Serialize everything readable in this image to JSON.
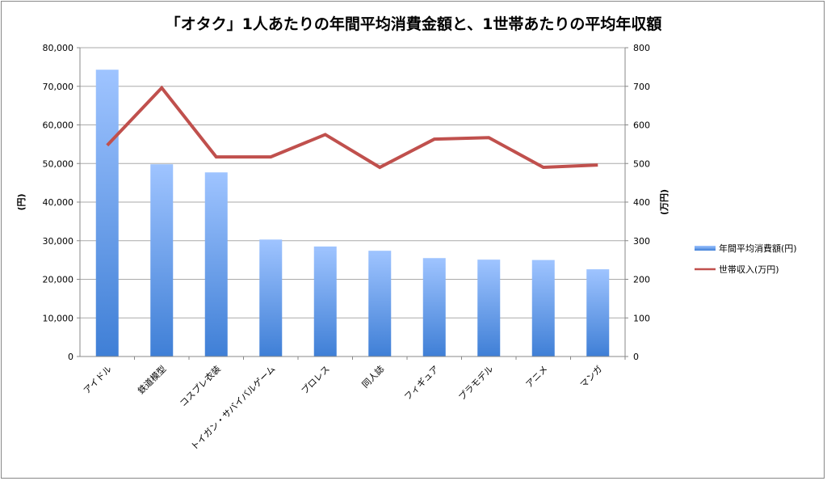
{
  "chart_data": {
    "type": "bar+line",
    "title": "「オタク」1人あたりの年間平均消費金額と、1世帯あたりの平均年収額",
    "ylabel": "(円)",
    "y2label": "(万円)",
    "ylim": [
      0,
      80000
    ],
    "y2lim": [
      0,
      800
    ],
    "yticks": [
      "0",
      "10,000",
      "20,000",
      "30,000",
      "40,000",
      "50,000",
      "60,000",
      "70,000",
      "80,000"
    ],
    "y2ticks": [
      "0",
      "100",
      "200",
      "300",
      "400",
      "500",
      "600",
      "700",
      "800"
    ],
    "grid": true,
    "legend_position": "right",
    "categories": [
      "アイドル",
      "鉄道模型",
      "コスプレ衣装",
      "トイガン・サバイバルゲーム",
      "プロレス",
      "同人誌",
      "フィギュア",
      "プラモデル",
      "アニメ",
      "マンガ"
    ],
    "series": [
      {
        "name": "年間平均消費額(円)",
        "type": "bar",
        "axis": "left",
        "color": "#4a86d8",
        "values": [
          74300,
          49800,
          47700,
          30300,
          28500,
          27400,
          25500,
          25100,
          25000,
          22600
        ]
      },
      {
        "name": "世帯収入(万円)",
        "type": "line",
        "axis": "right",
        "color": "#c0504d",
        "values": [
          547,
          696,
          517,
          517,
          575,
          490,
          563,
          567,
          490,
          496
        ]
      }
    ]
  }
}
